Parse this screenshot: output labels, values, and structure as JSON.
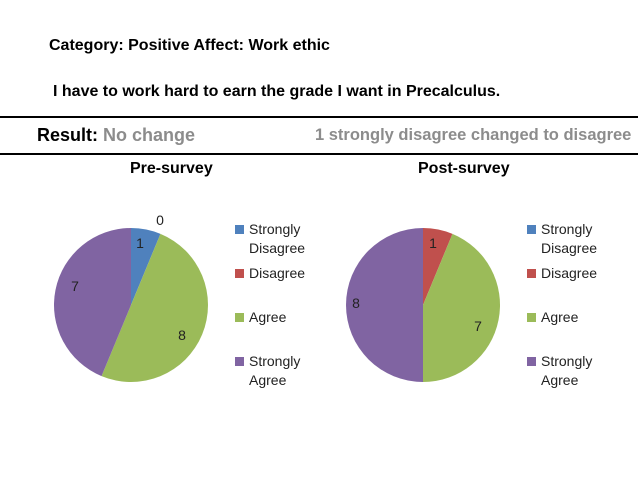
{
  "category_line": "Category: Positive Affect: Work ethic",
  "question": "I have to work hard to earn the grade I want in Precalculus.",
  "result": {
    "label": "Result:",
    "value": "No change"
  },
  "change_note": "1 strongly disagree changed to disagree",
  "colors": {
    "strongly_disagree": "#4f81bd",
    "disagree": "#c0504d",
    "agree": "#9bbb59",
    "strongly_agree": "#8064a2"
  },
  "chart_data": [
    {
      "type": "pie",
      "title": "Pre-survey",
      "categories": [
        "Strongly Disagree",
        "Disagree",
        "Agree",
        "Strongly Agree"
      ],
      "values": [
        1,
        0,
        8,
        7
      ],
      "data_labels": [
        "1",
        "0",
        "8",
        "7"
      ],
      "legend_position": "right"
    },
    {
      "type": "pie",
      "title": "Post-survey",
      "categories": [
        "Strongly Disagree",
        "Disagree",
        "Agree",
        "Strongly Agree"
      ],
      "values": [
        0,
        1,
        7,
        8
      ],
      "data_labels": [
        "",
        "1",
        "7",
        "8"
      ],
      "legend_position": "right"
    }
  ],
  "legend_labels": {
    "strongly_disagree": [
      "Strongly",
      "Disagree"
    ],
    "disagree": [
      "Disagree"
    ],
    "agree": [
      "Agree"
    ],
    "strongly_agree": [
      "Strongly",
      "Agree"
    ]
  }
}
